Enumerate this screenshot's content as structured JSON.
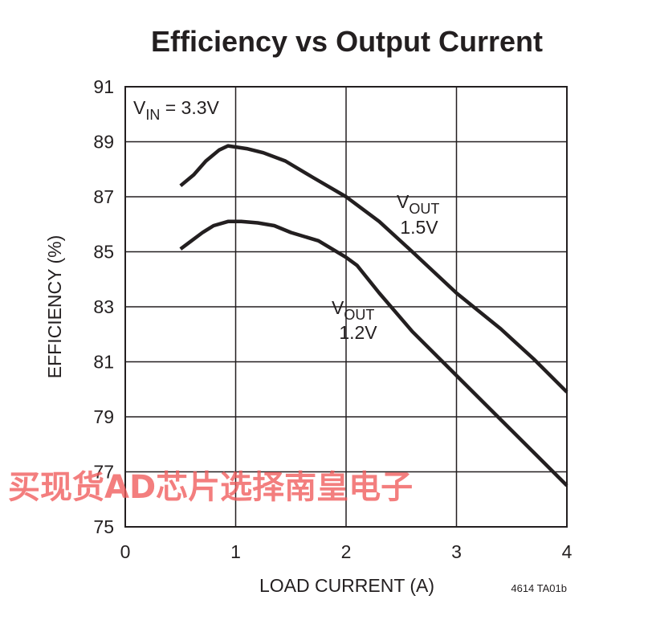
{
  "chart_data": {
    "type": "line",
    "title": "Efficiency vs Output Current",
    "xlabel": "LOAD CURRENT (A)",
    "ylabel": "EFFICIENCY (%)",
    "xlim": [
      0,
      4
    ],
    "ylim": [
      75,
      91
    ],
    "xticks": [
      "0",
      "1",
      "2",
      "3",
      "4"
    ],
    "yticks": [
      "75",
      "77",
      "79",
      "81",
      "83",
      "85",
      "87",
      "89",
      "91"
    ],
    "grid": true,
    "condition": {
      "main": "V",
      "sub": "IN",
      "rest": " = 3.3V"
    },
    "series": [
      {
        "label_main": "V",
        "label_sub": "OUT",
        "label_value": "1.5V",
        "x": [
          0.5,
          0.62,
          0.73,
          0.85,
          0.93,
          1.1,
          1.25,
          1.45,
          1.7,
          2.0,
          2.3,
          2.6,
          3.0,
          3.4,
          3.7,
          4.0
        ],
        "y": [
          87.4,
          87.8,
          88.3,
          88.7,
          88.85,
          88.75,
          88.6,
          88.3,
          87.7,
          87.0,
          86.1,
          85.0,
          83.5,
          82.2,
          81.1,
          79.9
        ]
      },
      {
        "label_main": "V",
        "label_sub": "OUT",
        "label_value": "1.2V",
        "x": [
          0.5,
          0.6,
          0.7,
          0.8,
          0.93,
          1.05,
          1.2,
          1.35,
          1.5,
          1.75,
          2.0,
          2.1,
          2.3,
          2.6,
          3.0,
          3.4,
          3.7,
          4.0
        ],
        "y": [
          85.1,
          85.4,
          85.7,
          85.95,
          86.1,
          86.1,
          86.05,
          85.95,
          85.7,
          85.4,
          84.8,
          84.5,
          83.5,
          82.1,
          80.5,
          78.9,
          77.7,
          76.5
        ]
      }
    ]
  },
  "figure_code": "4614 TA01b",
  "watermark": "买现货AD芯片选择南皇电子",
  "colors": {
    "ink": "#231f20",
    "grid": "#231f20",
    "watermark": "#f05a5a"
  }
}
